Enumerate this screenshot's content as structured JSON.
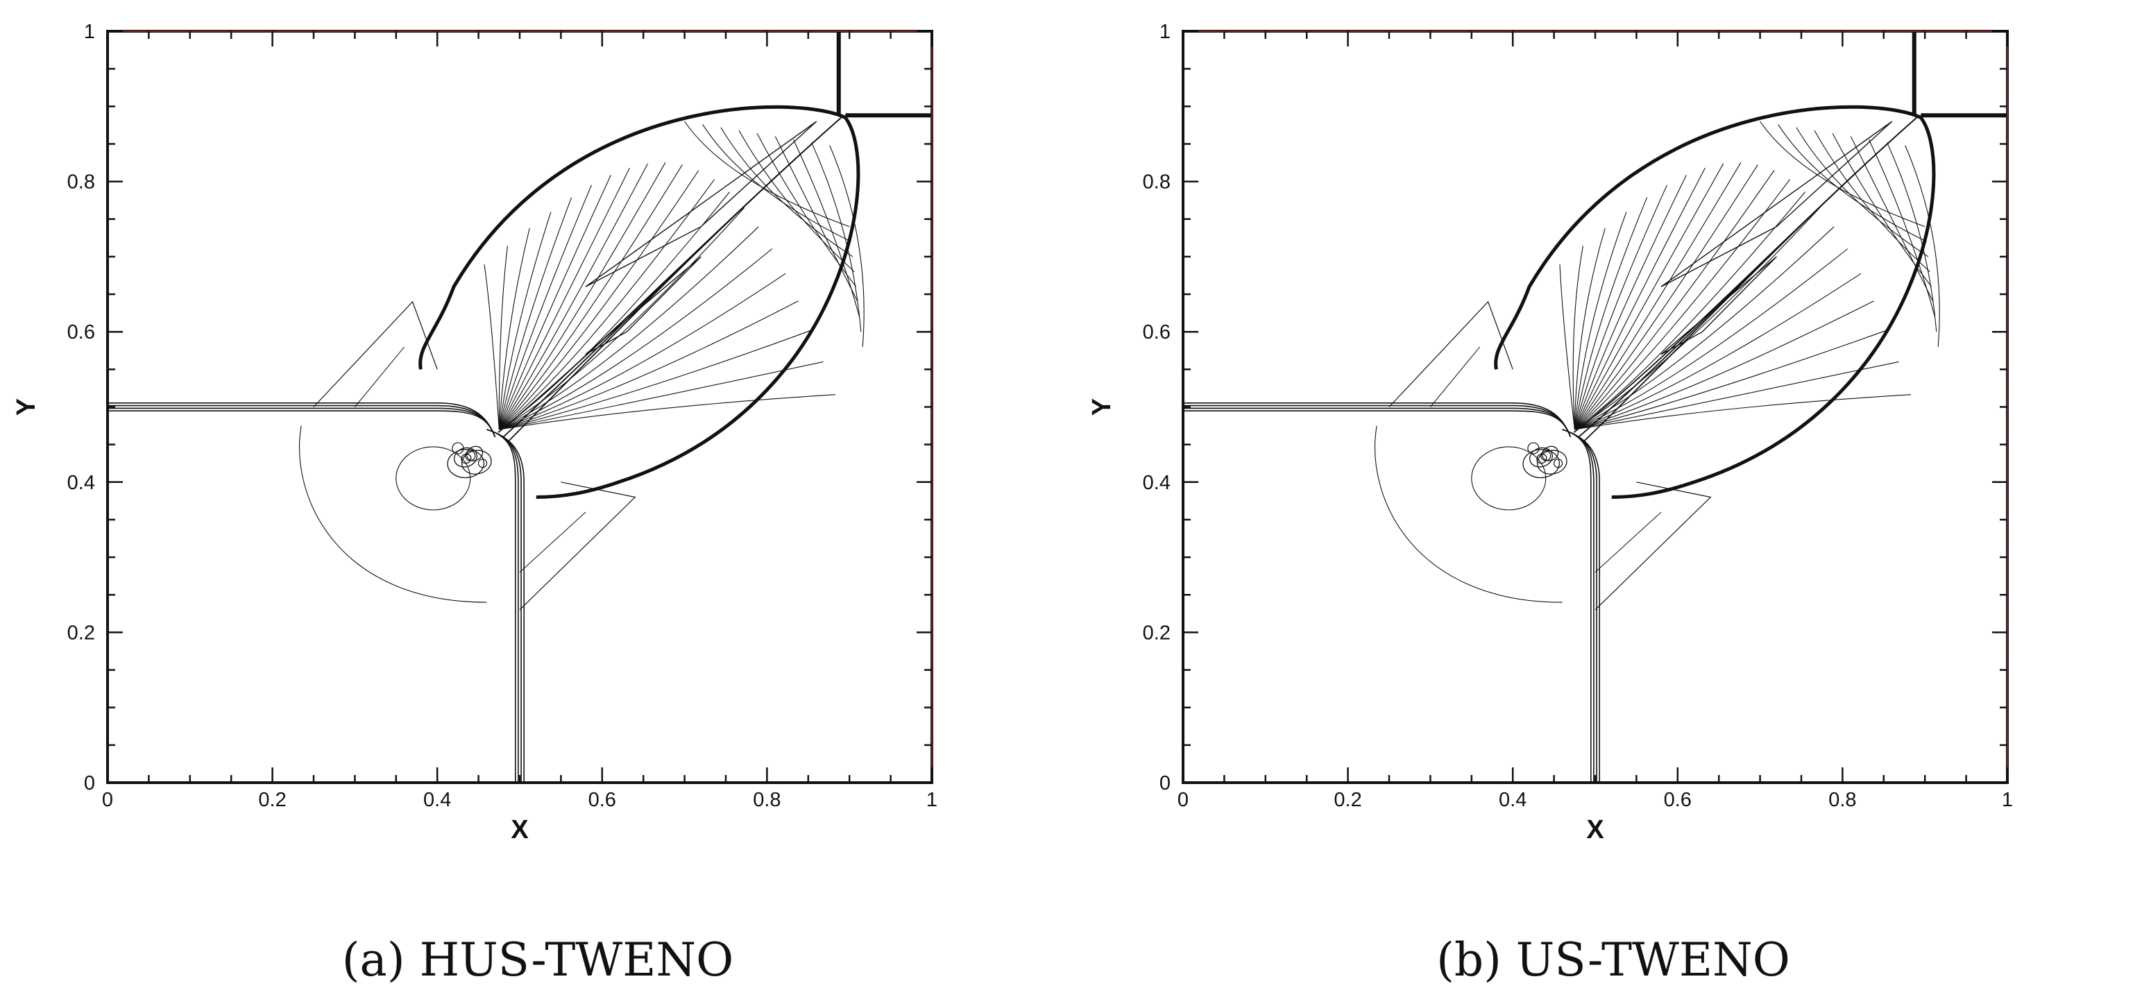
{
  "chart_data": [
    {
      "type": "contour",
      "caption": "(a) HUS-TWENO",
      "xlabel": "X",
      "ylabel": "Y",
      "xlim": [
        0,
        1
      ],
      "ylim": [
        0,
        1
      ],
      "xticks": [
        "0",
        "0.2",
        "0.4",
        "0.6",
        "0.8",
        "1"
      ],
      "yticks": [
        "0",
        "0.2",
        "0.4",
        "0.6",
        "0.8",
        "1"
      ],
      "grid": false,
      "legend": "none"
    },
    {
      "type": "contour",
      "caption": "(b) US-TWENO",
      "xlabel": "X",
      "ylabel": "Y",
      "xlim": [
        0,
        1
      ],
      "ylim": [
        0,
        1
      ],
      "xticks": [
        "0",
        "0.2",
        "0.4",
        "0.6",
        "0.8",
        "1"
      ],
      "yticks": [
        "0",
        "0.2",
        "0.4",
        "0.6",
        "0.8",
        "1"
      ],
      "grid": false,
      "legend": "none"
    }
  ]
}
